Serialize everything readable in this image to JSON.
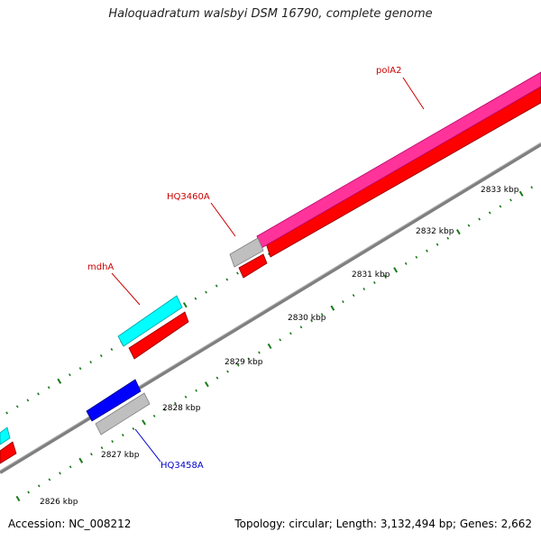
{
  "title": "Haloquadratum walsbyi DSM 16790, complete genome",
  "footer": {
    "accession": "Accession: NC_008212",
    "summary": "Topology: circular; Length: 3,132,494 bp; Genes: 2,662"
  },
  "colors": {
    "backbone": "#7f7f7f",
    "tick": "#1a7a1a",
    "forward_cds": "#ff3399",
    "reverse_cds": "#ff0000",
    "unlabeled_gene": "#00ffff",
    "misc_feature": "#bfbfbf",
    "trna": "#0000ff",
    "label_red": "#cc0000",
    "label_blue": "#0000cc"
  },
  "scale": {
    "tick_labels": [
      "2826 kbp",
      "2827 kbp",
      "2828 kbp",
      "2829 kbp",
      "2830 kbp",
      "2831 kbp",
      "2832 kbp",
      "2833 kbp"
    ]
  },
  "gene_labels": [
    {
      "text": "polA2",
      "color": "label_red"
    },
    {
      "text": "HQ3460A",
      "color": "label_red"
    },
    {
      "text": "mdhA",
      "color": "label_red"
    },
    {
      "text": "HQ3458A",
      "color": "label_blue"
    }
  ]
}
